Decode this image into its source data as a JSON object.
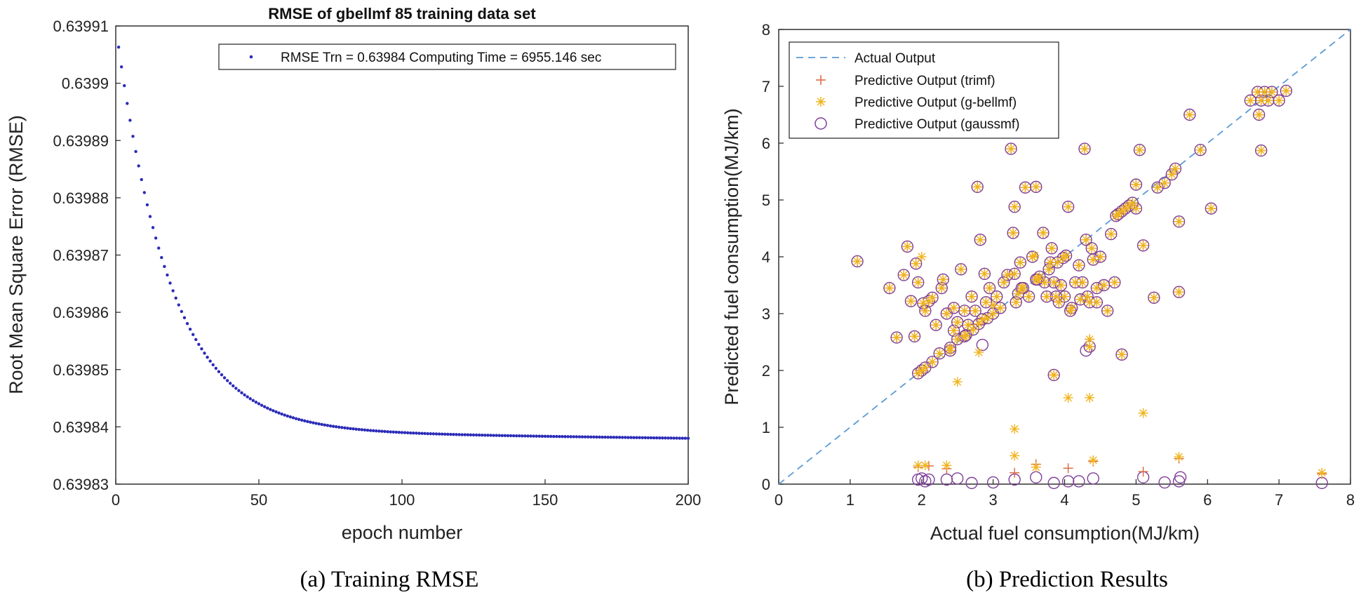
{
  "colors": {
    "rmse_points": "#2b2bb8",
    "actual_line": "#5b9bd5",
    "trimf": "#d9643a",
    "gbellmf": "#f0b41c",
    "gaussmf": "#7e3f98",
    "axis": "#222222"
  },
  "captions": {
    "left": "(a) Training RMSE",
    "right": "(b) Prediction Results"
  },
  "chart_data": [
    {
      "type": "scatter",
      "title": "RMSE of gbellmf 85 training data set",
      "xlabel": "epoch number",
      "ylabel": "Root Mean Square Error (RMSE)",
      "xlim": [
        0,
        200
      ],
      "ylim": [
        0.63983,
        0.63991
      ],
      "xticks": [
        "0",
        "50",
        "100",
        "150",
        "200"
      ],
      "yticks": [
        "0.63983",
        "0.63984",
        "0.63985",
        "0.63986",
        "0.63987",
        "0.63988",
        "0.63989",
        "0.6399",
        "0.63991"
      ],
      "legend": [
        "RMSE Trn = 0.63984 Computing Time = 6955.146 sec"
      ],
      "legend_position": "top-right",
      "series": [
        {
          "name": "RMSE Trn",
          "x_start": 1,
          "x_end": 200,
          "y_start": 0.639905,
          "y_end": 0.639838,
          "y_asymptote": 0.639838,
          "shape": "exponential decay"
        }
      ]
    },
    {
      "type": "scatter",
      "xlabel": "Actual fuel consumption(MJ/km)",
      "ylabel": "Predicted fuel consumption(MJ/km)",
      "xlim": [
        0,
        8
      ],
      "ylim": [
        0,
        8
      ],
      "xticks": [
        "0",
        "1",
        "2",
        "3",
        "4",
        "5",
        "6",
        "7",
        "8"
      ],
      "yticks": [
        "0",
        "1",
        "2",
        "3",
        "4",
        "5",
        "6",
        "7",
        "8"
      ],
      "legend": [
        "Actual Output",
        "Predictive Output (trimf)",
        "Predictive Output (g-bellmf)",
        "Predictive Output (gaussmf)"
      ],
      "legend_position": "top-left",
      "actual_line": [
        [
          0,
          0
        ],
        [
          8,
          8
        ]
      ],
      "points": [
        [
          1.1,
          3.92
        ],
        [
          1.55,
          3.45
        ],
        [
          1.65,
          2.58
        ],
        [
          1.75,
          3.68
        ],
        [
          1.8,
          4.18
        ],
        [
          1.85,
          3.22
        ],
        [
          1.9,
          2.6
        ],
        [
          1.92,
          3.88
        ],
        [
          1.95,
          3.55
        ],
        [
          1.95,
          1.95
        ],
        [
          2.0,
          2.0
        ],
        [
          2.02,
          3.18
        ],
        [
          2.05,
          3.05
        ],
        [
          2.1,
          3.22
        ],
        [
          2.15,
          3.28
        ],
        [
          2.15,
          2.15
        ],
        [
          2.2,
          2.8
        ],
        [
          2.25,
          2.3
        ],
        [
          2.28,
          3.45
        ],
        [
          2.3,
          3.6
        ],
        [
          2.35,
          3.0
        ],
        [
          2.4,
          2.35
        ],
        [
          2.45,
          3.1
        ],
        [
          2.45,
          2.7
        ],
        [
          2.5,
          2.55
        ],
        [
          2.5,
          2.85
        ],
        [
          2.55,
          3.78
        ],
        [
          2.6,
          3.05
        ],
        [
          2.62,
          2.62
        ],
        [
          2.65,
          2.8
        ],
        [
          2.7,
          3.3
        ],
        [
          2.72,
          2.72
        ],
        [
          2.75,
          3.05
        ],
        [
          2.78,
          5.23
        ],
        [
          2.8,
          2.82
        ],
        [
          2.82,
          4.3
        ],
        [
          2.85,
          2.9
        ],
        [
          2.88,
          3.7
        ],
        [
          2.9,
          3.2
        ],
        [
          2.92,
          2.92
        ],
        [
          2.95,
          3.45
        ],
        [
          3.0,
          3.0
        ],
        [
          3.05,
          3.3
        ],
        [
          3.1,
          3.1
        ],
        [
          3.15,
          3.55
        ],
        [
          3.2,
          3.68
        ],
        [
          3.25,
          5.9
        ],
        [
          3.28,
          4.42
        ],
        [
          3.3,
          4.88
        ],
        [
          3.32,
          3.2
        ],
        [
          3.35,
          3.35
        ],
        [
          3.38,
          3.9
        ],
        [
          3.4,
          3.45
        ],
        [
          3.42,
          3.45
        ],
        [
          3.45,
          5.22
        ],
        [
          3.5,
          3.3
        ],
        [
          3.55,
          4.0
        ],
        [
          3.6,
          5.23
        ],
        [
          3.62,
          3.6
        ],
        [
          3.65,
          3.65
        ],
        [
          3.7,
          4.42
        ],
        [
          3.72,
          3.55
        ],
        [
          3.75,
          3.3
        ],
        [
          3.78,
          3.78
        ],
        [
          3.8,
          3.9
        ],
        [
          3.82,
          4.15
        ],
        [
          3.85,
          3.55
        ],
        [
          3.88,
          3.3
        ],
        [
          3.9,
          3.9
        ],
        [
          3.92,
          3.2
        ],
        [
          3.95,
          3.5
        ],
        [
          3.98,
          3.98
        ],
        [
          4.0,
          3.3
        ],
        [
          4.02,
          4.02
        ],
        [
          4.05,
          4.88
        ],
        [
          4.08,
          3.05
        ],
        [
          4.1,
          3.1
        ],
        [
          4.15,
          3.55
        ],
        [
          4.2,
          3.85
        ],
        [
          4.22,
          3.25
        ],
        [
          4.25,
          3.55
        ],
        [
          4.28,
          5.9
        ],
        [
          4.3,
          4.3
        ],
        [
          4.32,
          3.3
        ],
        [
          4.35,
          3.2
        ],
        [
          4.38,
          4.15
        ],
        [
          4.4,
          3.95
        ],
        [
          4.45,
          3.45
        ],
        [
          4.5,
          4.0
        ],
        [
          4.55,
          3.5
        ],
        [
          4.6,
          3.05
        ],
        [
          4.65,
          4.4
        ],
        [
          4.7,
          3.55
        ],
        [
          4.72,
          4.72
        ],
        [
          4.75,
          4.75
        ],
        [
          4.8,
          4.8
        ],
        [
          4.85,
          4.85
        ],
        [
          4.9,
          4.9
        ],
        [
          4.95,
          4.95
        ],
        [
          5.0,
          5.27
        ],
        [
          5.0,
          4.85
        ],
        [
          5.05,
          5.88
        ],
        [
          5.1,
          4.2
        ],
        [
          5.25,
          3.28
        ],
        [
          5.3,
          5.22
        ],
        [
          5.4,
          5.3
        ],
        [
          5.5,
          5.45
        ],
        [
          5.55,
          5.55
        ],
        [
          5.6,
          4.62
        ],
        [
          5.6,
          3.38
        ],
        [
          5.75,
          6.5
        ],
        [
          5.9,
          5.88
        ],
        [
          6.05,
          4.85
        ],
        [
          6.6,
          6.75
        ],
        [
          6.7,
          6.9
        ],
        [
          6.75,
          6.75
        ],
        [
          6.8,
          6.9
        ],
        [
          6.85,
          6.75
        ],
        [
          6.9,
          6.9
        ],
        [
          7.0,
          6.75
        ],
        [
          7.1,
          6.92
        ],
        [
          6.72,
          6.5
        ],
        [
          6.75,
          5.87
        ],
        [
          3.3,
          3.7
        ],
        [
          2.05,
          2.05
        ],
        [
          4.35,
          2.42
        ],
        [
          4.8,
          2.28
        ],
        [
          3.6,
          3.6
        ],
        [
          2.4,
          2.4
        ],
        [
          2.6,
          2.6
        ],
        [
          4.45,
          3.2
        ],
        [
          3.85,
          1.92
        ]
      ],
      "gbell_only": [
        [
          2.0,
          4.0
        ],
        [
          3.58,
          4.02
        ],
        [
          2.5,
          1.8
        ],
        [
          2.8,
          2.32
        ],
        [
          3.0,
          3.15
        ],
        [
          4.05,
          1.52
        ],
        [
          4.35,
          1.52
        ],
        [
          5.1,
          1.25
        ],
        [
          3.3,
          0.97
        ],
        [
          3.3,
          0.5
        ],
        [
          1.95,
          0.33
        ],
        [
          2.05,
          0.33
        ],
        [
          2.35,
          0.33
        ],
        [
          3.6,
          0.3
        ],
        [
          4.4,
          0.42
        ],
        [
          5.6,
          0.48
        ],
        [
          7.6,
          0.2
        ],
        [
          4.35,
          2.55
        ],
        [
          3.85,
          1.92
        ]
      ],
      "trimf_only": [
        [
          1.95,
          0.3
        ],
        [
          2.1,
          0.32
        ],
        [
          2.35,
          0.27
        ],
        [
          3.3,
          0.2
        ],
        [
          3.6,
          0.35
        ],
        [
          4.05,
          0.28
        ],
        [
          4.4,
          0.4
        ],
        [
          5.1,
          0.22
        ],
        [
          5.6,
          0.45
        ],
        [
          7.6,
          0.18
        ],
        [
          4.35,
          2.55
        ]
      ],
      "gauss_only": [
        [
          1.95,
          0.08
        ],
        [
          2.0,
          0.1
        ],
        [
          2.05,
          0.05
        ],
        [
          2.1,
          0.08
        ],
        [
          2.35,
          0.08
        ],
        [
          2.5,
          0.1
        ],
        [
          2.7,
          0.02
        ],
        [
          3.0,
          0.03
        ],
        [
          3.3,
          0.08
        ],
        [
          3.6,
          0.12
        ],
        [
          3.85,
          0.02
        ],
        [
          4.05,
          0.05
        ],
        [
          4.2,
          0.05
        ],
        [
          4.4,
          0.1
        ],
        [
          5.1,
          0.12
        ],
        [
          5.4,
          0.03
        ],
        [
          5.6,
          0.05
        ],
        [
          5.62,
          0.12
        ],
        [
          7.6,
          0.02
        ],
        [
          4.3,
          2.35
        ],
        [
          2.85,
          2.45
        ]
      ]
    }
  ]
}
